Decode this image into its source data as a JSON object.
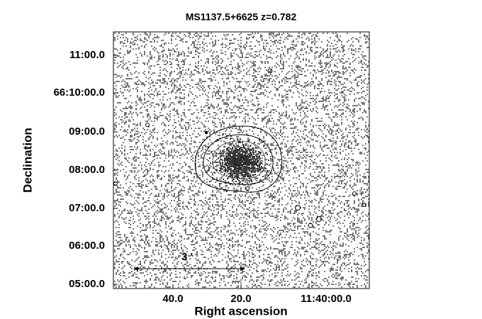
{
  "title": "MS1137.5+6625 z=0.782",
  "x_axis": {
    "label": "Right ascension",
    "ticks": [
      "40.0",
      "20.0",
      "11:40:00.0"
    ]
  },
  "y_axis": {
    "label": "Declination",
    "ticks": [
      "11:00.0",
      "66:10:00.0",
      "09:00.0",
      "08:00.0",
      "07:00.0",
      "06:00.0",
      "05:00.0"
    ]
  },
  "scale_bar": {
    "label": "3 '"
  }
}
